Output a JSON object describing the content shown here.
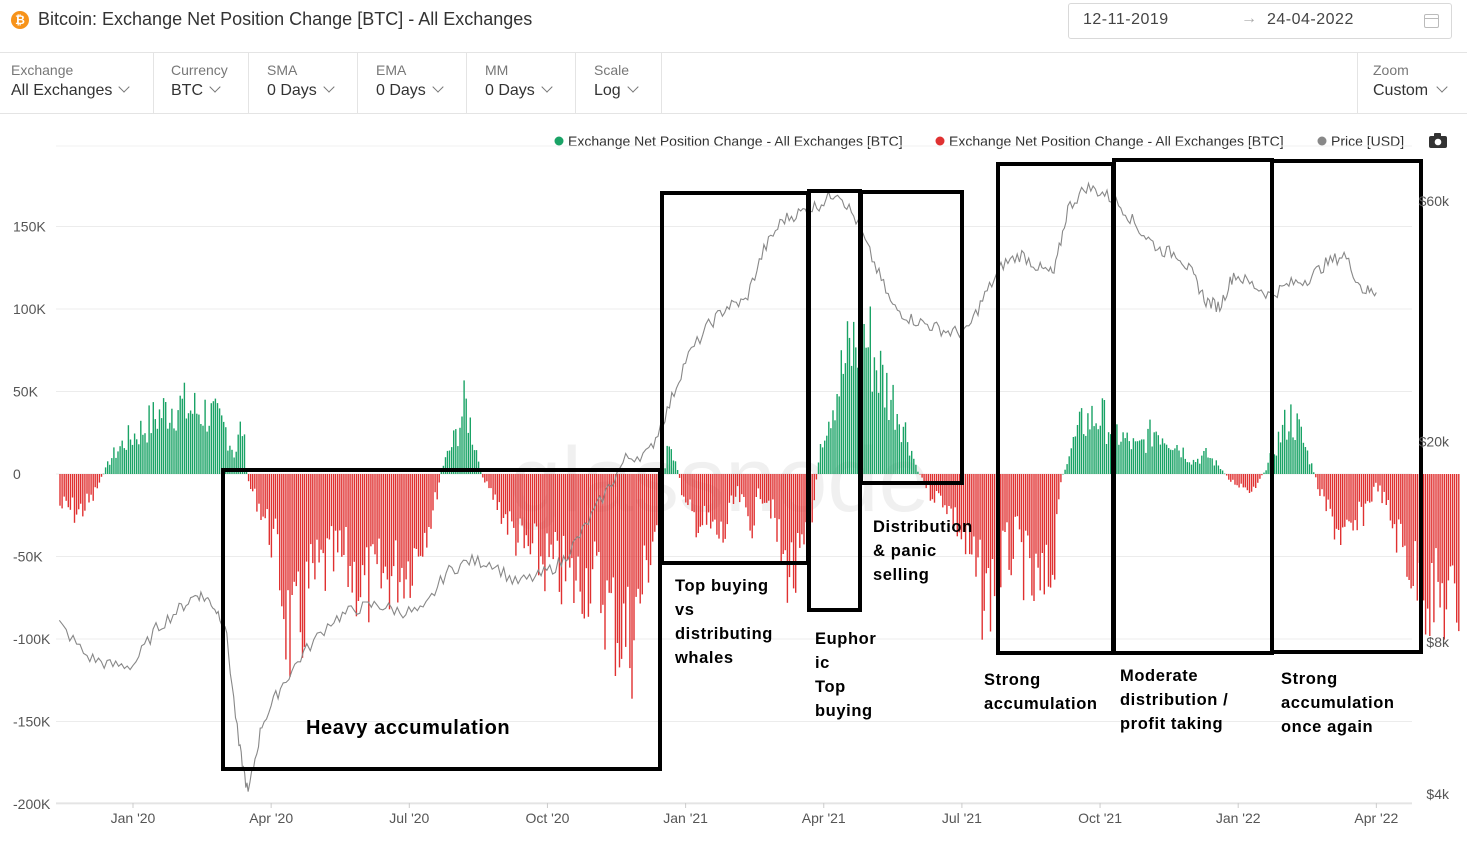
{
  "header": {
    "title": "Bitcoin: Exchange Net Position Change [BTC] - All Exchanges",
    "date_from": "12-11-2019",
    "date_to": "24-04-2022",
    "range_arrow": "→"
  },
  "controls": [
    {
      "label": "Exchange",
      "value": "All Exchanges"
    },
    {
      "label": "Currency",
      "value": "BTC"
    },
    {
      "label": "SMA",
      "value": "0 Days"
    },
    {
      "label": "EMA",
      "value": "0 Days"
    },
    {
      "label": "MM",
      "value": "0 Days"
    },
    {
      "label": "Scale",
      "value": "Log"
    }
  ],
  "zoom": {
    "label": "Zoom",
    "value": "Custom"
  },
  "watermark": "glassnode",
  "chart_data": {
    "type": "bar",
    "title": "Bitcoin: Exchange Net Position Change [BTC] - All Exchanges",
    "legend": [
      {
        "name": "Exchange Net Position Change - All Exchanges [BTC]",
        "color": "#1aa366"
      },
      {
        "name": "Exchange Net Position Change - All Exchanges [BTC]",
        "color": "#e03131"
      },
      {
        "name": "Price [USD]",
        "color": "#888888"
      }
    ],
    "y_left": {
      "ticks": [
        150000,
        100000,
        50000,
        0,
        -50000,
        -100000,
        -150000,
        -200000
      ],
      "tick_labels": [
        "150K",
        "100K",
        "50K",
        "0",
        "-50K",
        "-100K",
        "-150K",
        "-200K"
      ],
      "range": [
        -200000,
        175000
      ]
    },
    "y_right": {
      "scale": "log",
      "tick_labels": [
        "$60k",
        "$20k",
        "$8k",
        "$4k"
      ],
      "ticks": [
        60000,
        20000,
        8000,
        4000
      ]
    },
    "x_tick_labels": [
      "Jan '20",
      "Apr '20",
      "Jul '20",
      "Oct '20",
      "Jan '21",
      "Apr '21",
      "Jul '21",
      "Oct '21",
      "Jan '22",
      "Apr '22"
    ],
    "x_range_months": [
      -1.6,
      28.8
    ],
    "net_position_series": [
      [
        -1.6,
        -25000
      ],
      [
        -1.2,
        -30000
      ],
      [
        -0.9,
        -20000
      ],
      [
        -0.7,
        -3000
      ],
      [
        -0.5,
        12000
      ],
      [
        -0.2,
        25000
      ],
      [
        0.2,
        35000
      ],
      [
        0.5,
        45000
      ],
      [
        0.9,
        55000
      ],
      [
        1.2,
        50000
      ],
      [
        1.6,
        48000
      ],
      [
        2.0,
        35000
      ],
      [
        2.2,
        15000
      ],
      [
        2.35,
        40000
      ],
      [
        2.5,
        -8000
      ],
      [
        2.8,
        -30000
      ],
      [
        3.1,
        -60000
      ],
      [
        3.3,
        -110000
      ],
      [
        3.5,
        -140000
      ],
      [
        3.8,
        -90000
      ],
      [
        4.1,
        -75000
      ],
      [
        4.5,
        -65000
      ],
      [
        5.0,
        -90000
      ],
      [
        5.5,
        -80000
      ],
      [
        6.0,
        -70000
      ],
      [
        6.5,
        -30000
      ],
      [
        6.7,
        5000
      ],
      [
        7.0,
        30000
      ],
      [
        7.2,
        55000
      ],
      [
        7.4,
        25000
      ],
      [
        7.6,
        -5000
      ],
      [
        8.0,
        -30000
      ],
      [
        8.5,
        -60000
      ],
      [
        9.0,
        -70000
      ],
      [
        9.5,
        -85000
      ],
      [
        10.0,
        -80000
      ],
      [
        10.5,
        -120000
      ],
      [
        10.8,
        -130000
      ],
      [
        11.1,
        -80000
      ],
      [
        11.4,
        -30000
      ],
      [
        11.6,
        20000
      ],
      [
        11.8,
        5000
      ],
      [
        12.0,
        -30000
      ],
      [
        12.4,
        -40000
      ],
      [
        12.8,
        -50000
      ],
      [
        13.1,
        -15000
      ],
      [
        13.4,
        -40000
      ],
      [
        13.6,
        -15000
      ],
      [
        13.8,
        -20000
      ],
      [
        14.1,
        -70000
      ],
      [
        14.4,
        -80000
      ],
      [
        14.7,
        -50000
      ],
      [
        14.9,
        25000
      ],
      [
        15.2,
        60000
      ],
      [
        15.5,
        90000
      ],
      [
        15.8,
        110000
      ],
      [
        16.0,
        100000
      ],
      [
        16.3,
        70000
      ],
      [
        16.6,
        50000
      ],
      [
        16.8,
        30000
      ],
      [
        17.0,
        5000
      ],
      [
        17.3,
        -15000
      ],
      [
        17.6,
        -20000
      ],
      [
        17.9,
        -40000
      ],
      [
        18.2,
        -70000
      ],
      [
        18.5,
        -100000
      ],
      [
        18.8,
        -70000
      ],
      [
        19.2,
        -55000
      ],
      [
        19.5,
        -90000
      ],
      [
        19.8,
        -95000
      ],
      [
        20.0,
        -60000
      ],
      [
        20.1,
        -10000
      ],
      [
        20.3,
        15000
      ],
      [
        20.6,
        40000
      ],
      [
        21.0,
        45000
      ],
      [
        21.4,
        30000
      ],
      [
        21.8,
        20000
      ],
      [
        22.2,
        35000
      ],
      [
        22.6,
        25000
      ],
      [
        23.0,
        10000
      ],
      [
        23.3,
        15000
      ],
      [
        23.6,
        5000
      ],
      [
        23.8,
        -5000
      ],
      [
        24.0,
        -8000
      ],
      [
        24.3,
        -12000
      ],
      [
        24.6,
        5000
      ],
      [
        24.9,
        30000
      ],
      [
        25.1,
        45000
      ],
      [
        25.3,
        35000
      ],
      [
        25.6,
        5000
      ],
      [
        25.8,
        -20000
      ],
      [
        26.1,
        -40000
      ],
      [
        26.4,
        -55000
      ],
      [
        26.7,
        -30000
      ],
      [
        27.0,
        -8000
      ],
      [
        27.3,
        -35000
      ],
      [
        27.6,
        -60000
      ],
      [
        27.9,
        -85000
      ],
      [
        28.2,
        -95000
      ],
      [
        28.5,
        -100000
      ],
      [
        28.8,
        -105000
      ]
    ],
    "price_series": [
      [
        -1.6,
        8700
      ],
      [
        -1.0,
        7500
      ],
      [
        -0.5,
        7200
      ],
      [
        0.0,
        7200
      ],
      [
        0.5,
        8500
      ],
      [
        1.0,
        9300
      ],
      [
        1.4,
        10000
      ],
      [
        1.7,
        9600
      ],
      [
        2.0,
        8700
      ],
      [
        2.3,
        5000
      ],
      [
        2.5,
        4000
      ],
      [
        2.8,
        5500
      ],
      [
        3.2,
        6500
      ],
      [
        3.7,
        7600
      ],
      [
        4.3,
        8800
      ],
      [
        4.8,
        9300
      ],
      [
        5.3,
        9500
      ],
      [
        5.8,
        9200
      ],
      [
        6.3,
        9200
      ],
      [
        6.8,
        11000
      ],
      [
        7.3,
        11600
      ],
      [
        7.8,
        11500
      ],
      [
        8.3,
        10500
      ],
      [
        8.8,
        10800
      ],
      [
        9.3,
        11500
      ],
      [
        9.7,
        13000
      ],
      [
        10.2,
        15500
      ],
      [
        10.7,
        18500
      ],
      [
        11.2,
        19000
      ],
      [
        11.6,
        23000
      ],
      [
        12.0,
        29000
      ],
      [
        12.5,
        34000
      ],
      [
        12.9,
        37000
      ],
      [
        13.3,
        38000
      ],
      [
        13.7,
        48000
      ],
      [
        14.1,
        55000
      ],
      [
        14.5,
        57000
      ],
      [
        14.9,
        59000
      ],
      [
        15.3,
        63000
      ],
      [
        15.7,
        55000
      ],
      [
        16.1,
        45000
      ],
      [
        16.5,
        37000
      ],
      [
        16.9,
        35000
      ],
      [
        17.3,
        34000
      ],
      [
        17.7,
        33000
      ],
      [
        18.1,
        33000
      ],
      [
        18.5,
        39000
      ],
      [
        18.9,
        45000
      ],
      [
        19.3,
        47000
      ],
      [
        19.7,
        44000
      ],
      [
        20.0,
        43000
      ],
      [
        20.3,
        58000
      ],
      [
        20.7,
        64000
      ],
      [
        21.1,
        62000
      ],
      [
        21.5,
        58000
      ],
      [
        21.9,
        52000
      ],
      [
        22.3,
        48000
      ],
      [
        22.7,
        47000
      ],
      [
        23.0,
        43000
      ],
      [
        23.3,
        38000
      ],
      [
        23.6,
        37000
      ],
      [
        23.9,
        43000
      ],
      [
        24.3,
        41000
      ],
      [
        24.7,
        39000
      ],
      [
        25.1,
        41000
      ],
      [
        25.5,
        42000
      ],
      [
        25.9,
        45000
      ],
      [
        26.3,
        47000
      ],
      [
        26.7,
        40000
      ],
      [
        27.0,
        39500
      ]
    ],
    "annotations": [
      {
        "lines": [
          "Heavy accumulation"
        ],
        "big": true
      },
      {
        "lines": [
          "Top buying",
          "vs",
          "distributing",
          "whales"
        ]
      },
      {
        "lines": [
          "Euphor",
          "ic",
          "Top",
          "buying"
        ]
      },
      {
        "lines": [
          "Distribution",
          "& panic",
          "selling"
        ]
      },
      {
        "lines": [
          "Strong",
          "accumulation"
        ]
      },
      {
        "lines": [
          "Moderate",
          "distribution /",
          "profit taking"
        ]
      },
      {
        "lines": [
          "Strong",
          "accumulation",
          "once again"
        ]
      }
    ],
    "annotation_boxes": [
      {
        "from_month": 2.5,
        "to_month": 11.8,
        "lower_btc": -178000,
        "upper_btc": 2000
      },
      {
        "from_month": 11.8,
        "to_month": 14.9,
        "lower_btc": -55000,
        "upper_btc": 170000
      },
      {
        "from_month": 14.9,
        "to_month": 14.9,
        "lower_btc": -82000,
        "upper_btc": 180000
      },
      {
        "from_month": 15.0,
        "to_month": 16.4,
        "lower_btc": -4000,
        "upper_btc": 170000
      },
      {
        "from_month": 17.5,
        "to_month": 18.8,
        "lower_btc": -107000,
        "upper_btc": 188000
      },
      {
        "from_month": 19.2,
        "to_month": 20.2,
        "lower_btc": -107000,
        "upper_btc": 188000
      },
      {
        "from_month": 20.4,
        "to_month": 21.6,
        "lower_btc": -107000,
        "upper_btc": 188000
      }
    ]
  }
}
